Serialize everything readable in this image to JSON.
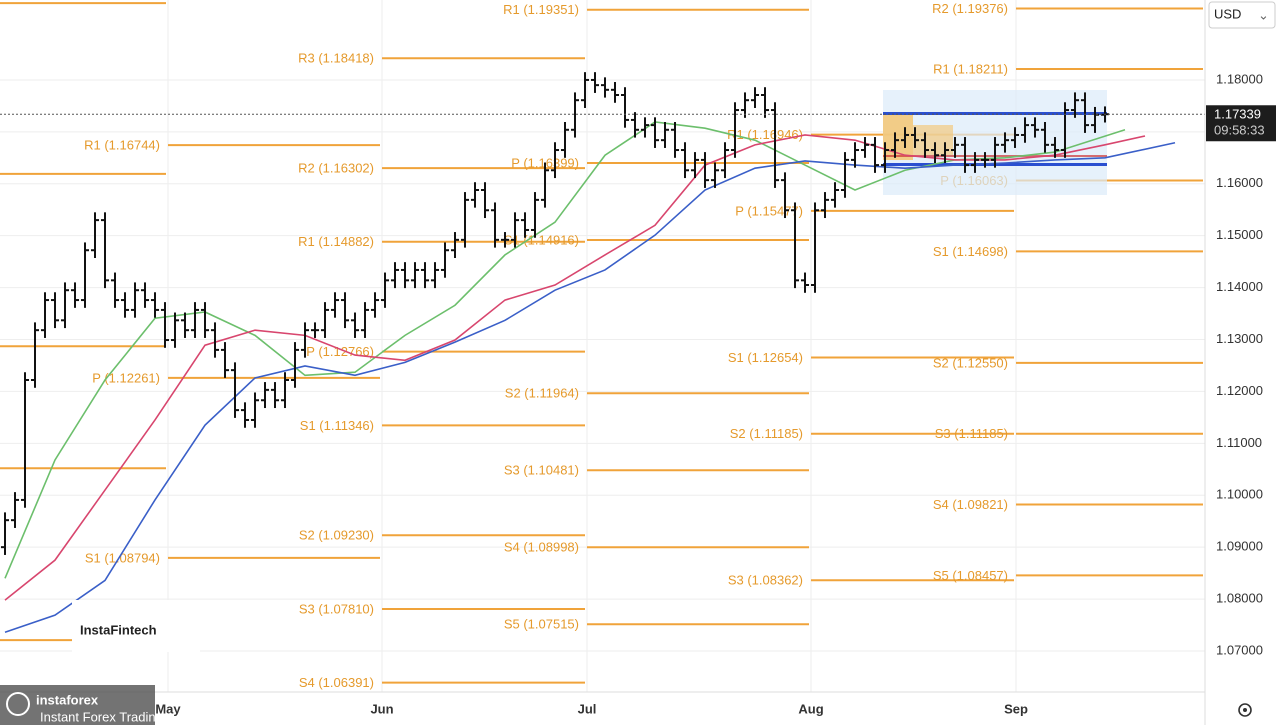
{
  "chart_data": {
    "type": "ohlc",
    "currency": "USD",
    "countdown": "09:58:33",
    "watermark": "InstaFintech",
    "brand": {
      "name": "instaforex",
      "tagline": "Instant Forex Trading"
    },
    "last_price": 1.17339,
    "categories": [
      "May",
      "Jun",
      "Jul",
      "Aug",
      "Sep"
    ],
    "ylim": [
      1.0621,
      1.1954
    ],
    "yticks": [
      {
        "value": 1.07,
        "label": "1.07000"
      },
      {
        "value": 1.08,
        "label": "1.08000"
      },
      {
        "value": 1.09,
        "label": "1.09000"
      },
      {
        "value": 1.1,
        "label": "1.10000"
      },
      {
        "value": 1.11,
        "label": "1.11000"
      },
      {
        "value": 1.12,
        "label": "1.12000"
      },
      {
        "value": 1.13,
        "label": "1.13000"
      },
      {
        "value": 1.14,
        "label": "1.14000"
      },
      {
        "value": 1.15,
        "label": "1.15000"
      },
      {
        "value": 1.16,
        "label": "1.16000"
      },
      {
        "value": 1.17,
        "label": "1.17000"
      },
      {
        "value": 1.18,
        "label": "1.18000"
      }
    ],
    "grid": true,
    "bar_color": "#111111",
    "open": [
      1.09,
      1.0952,
      1.0991,
      1.1222,
      1.1318,
      1.1376,
      1.1337,
      1.1395,
      1.1376,
      1.1472,
      1.153,
      1.1414,
      1.1376,
      1.1357,
      1.1395,
      1.1376,
      1.1357,
      1.1299,
      1.1337,
      1.1318,
      1.1357,
      1.1318,
      1.128,
      1.1241,
      1.1164,
      1.1145,
      1.1183,
      1.1203,
      1.1183,
      1.1222,
      1.128,
      1.1318,
      1.1318,
      1.1357,
      1.1376,
      1.1337,
      1.1318,
      1.1357,
      1.1376,
      1.1414,
      1.1434,
      1.1414,
      1.1434,
      1.1414,
      1.1434,
      1.1472,
      1.1492,
      1.1569,
      1.1588,
      1.1549,
      1.1492,
      1.1492,
      1.153,
      1.1511,
      1.1569,
      1.1626,
      1.1665,
      1.1704,
      1.1761,
      1.18,
      1.179,
      1.1781,
      1.1771,
      1.1723,
      1.1704,
      1.1713,
      1.1684,
      1.1704,
      1.1665,
      1.1626,
      1.1646,
      1.1607,
      1.1626,
      1.1665,
      1.1742,
      1.1761,
      1.1771,
      1.1742,
      1.1607,
      1.1549,
      1.1414,
      1.1405,
      1.1549,
      1.1569,
      1.1588,
      1.1646,
      1.1665,
      1.1675,
      1.1636,
      1.1665,
      1.1684,
      1.1694,
      1.1684,
      1.1665,
      1.1655,
      1.1665,
      1.1675,
      1.1636,
      1.1646,
      1.1646,
      1.1675,
      1.1684,
      1.1694,
      1.1713,
      1.1704,
      1.1675,
      1.1665,
      1.1742,
      1.1761,
      1.1713,
      1.1733
    ],
    "high": [
      1.0967,
      1.1006,
      1.1237,
      1.1333,
      1.1391,
      1.1391,
      1.141,
      1.141,
      1.1487,
      1.1545,
      1.1545,
      1.1429,
      1.1391,
      1.141,
      1.141,
      1.1391,
      1.1372,
      1.1352,
      1.1352,
      1.1372,
      1.1372,
      1.1333,
      1.1295,
      1.1256,
      1.1179,
      1.1198,
      1.1218,
      1.1218,
      1.1237,
      1.1295,
      1.1333,
      1.1333,
      1.1372,
      1.1391,
      1.1391,
      1.1352,
      1.1372,
      1.1391,
      1.1429,
      1.1449,
      1.1449,
      1.1449,
      1.1449,
      1.1449,
      1.1487,
      1.1507,
      1.1584,
      1.1603,
      1.1603,
      1.1564,
      1.1507,
      1.1545,
      1.1545,
      1.1584,
      1.1641,
      1.168,
      1.1719,
      1.1776,
      1.1815,
      1.1815,
      1.1805,
      1.1796,
      1.1786,
      1.1738,
      1.1728,
      1.1728,
      1.1719,
      1.1719,
      1.168,
      1.1661,
      1.1661,
      1.1641,
      1.168,
      1.1757,
      1.1776,
      1.1786,
      1.1786,
      1.1757,
      1.1622,
      1.1564,
      1.1429,
      1.1564,
      1.1584,
      1.1603,
      1.1661,
      1.168,
      1.169,
      1.169,
      1.168,
      1.1699,
      1.1709,
      1.1709,
      1.1699,
      1.168,
      1.168,
      1.169,
      1.169,
      1.1661,
      1.1661,
      1.169,
      1.1699,
      1.1709,
      1.1728,
      1.1728,
      1.1719,
      1.169,
      1.1757,
      1.1776,
      1.1776,
      1.1748,
      1.1749
    ],
    "low": [
      1.0885,
      1.0937,
      1.0976,
      1.1207,
      1.1303,
      1.1322,
      1.1322,
      1.1361,
      1.1361,
      1.1457,
      1.1399,
      1.1361,
      1.1342,
      1.1342,
      1.1361,
      1.1342,
      1.1284,
      1.1284,
      1.1303,
      1.1303,
      1.1303,
      1.1265,
      1.1226,
      1.1149,
      1.113,
      1.113,
      1.1168,
      1.1168,
      1.1168,
      1.1207,
      1.1265,
      1.1303,
      1.1303,
      1.1342,
      1.1322,
      1.1303,
      1.1303,
      1.1342,
      1.1361,
      1.1399,
      1.1399,
      1.1399,
      1.1399,
      1.1399,
      1.1419,
      1.1457,
      1.1477,
      1.1554,
      1.1534,
      1.1477,
      1.1477,
      1.1477,
      1.1496,
      1.1496,
      1.1554,
      1.1611,
      1.165,
      1.1689,
      1.1746,
      1.1775,
      1.1766,
      1.1756,
      1.1708,
      1.1689,
      1.1689,
      1.1669,
      1.1669,
      1.165,
      1.1611,
      1.1611,
      1.1592,
      1.1592,
      1.1611,
      1.165,
      1.1727,
      1.1746,
      1.1727,
      1.1592,
      1.1534,
      1.1399,
      1.139,
      1.139,
      1.1534,
      1.1554,
      1.1573,
      1.1631,
      1.165,
      1.1621,
      1.1621,
      1.165,
      1.1669,
      1.1669,
      1.165,
      1.164,
      1.164,
      1.165,
      1.1621,
      1.1621,
      1.1631,
      1.1631,
      1.166,
      1.1669,
      1.1679,
      1.1689,
      1.166,
      1.165,
      1.165,
      1.1727,
      1.1698,
      1.1698,
      1.1718
    ],
    "close": [
      1.0952,
      1.0991,
      1.1222,
      1.1318,
      1.1376,
      1.1337,
      1.1395,
      1.1376,
      1.1472,
      1.153,
      1.1414,
      1.1376,
      1.1357,
      1.1395,
      1.1376,
      1.1357,
      1.1299,
      1.1337,
      1.1318,
      1.1357,
      1.1318,
      1.128,
      1.1241,
      1.1164,
      1.1145,
      1.1183,
      1.1203,
      1.1183,
      1.1222,
      1.128,
      1.1318,
      1.1318,
      1.1357,
      1.1376,
      1.1337,
      1.1318,
      1.1357,
      1.1376,
      1.1414,
      1.1434,
      1.1414,
      1.1434,
      1.1414,
      1.1434,
      1.1472,
      1.1492,
      1.1569,
      1.1588,
      1.1549,
      1.1492,
      1.1492,
      1.153,
      1.1511,
      1.1569,
      1.1626,
      1.1665,
      1.1704,
      1.1761,
      1.18,
      1.179,
      1.1781,
      1.1771,
      1.1723,
      1.1704,
      1.1713,
      1.1684,
      1.1704,
      1.1665,
      1.1626,
      1.1646,
      1.1607,
      1.1626,
      1.1665,
      1.1742,
      1.1761,
      1.1771,
      1.1742,
      1.1607,
      1.1549,
      1.1414,
      1.1405,
      1.1549,
      1.1569,
      1.1588,
      1.1646,
      1.1665,
      1.1675,
      1.1636,
      1.1665,
      1.1684,
      1.1694,
      1.1684,
      1.1665,
      1.1655,
      1.1665,
      1.1675,
      1.1636,
      1.1646,
      1.1646,
      1.1675,
      1.1684,
      1.1694,
      1.1713,
      1.1704,
      1.1675,
      1.1665,
      1.1742,
      1.1761,
      1.1713,
      1.1733,
      1.1734
    ],
    "moving_averages": [
      {
        "color": "#6cbf6c",
        "x": [
          0,
          5,
          10,
          15,
          20,
          25,
          30,
          35,
          40,
          45,
          50,
          55,
          60,
          65,
          70,
          75,
          80,
          85,
          90,
          95,
          100,
          105,
          112
        ],
        "values": [
          1.084,
          1.1068,
          1.1222,
          1.1341,
          1.1353,
          1.1308,
          1.1231,
          1.1237,
          1.1308,
          1.1366,
          1.1463,
          1.1526,
          1.1655,
          1.1719,
          1.1707,
          1.1684,
          1.1636,
          1.1588,
          1.1626,
          1.1646,
          1.165,
          1.1661,
          1.1704
        ]
      },
      {
        "color": "#d8466e",
        "x": [
          0,
          5,
          10,
          15,
          20,
          25,
          30,
          35,
          40,
          45,
          50,
          55,
          60,
          65,
          70,
          75,
          80,
          85,
          90,
          95,
          100,
          105,
          110,
          114
        ],
        "values": [
          1.0798,
          1.0875,
          1.101,
          1.1145,
          1.1289,
          1.1318,
          1.1308,
          1.127,
          1.126,
          1.1299,
          1.1376,
          1.1405,
          1.1463,
          1.152,
          1.1636,
          1.1675,
          1.1694,
          1.1684,
          1.1655,
          1.1646,
          1.1646,
          1.1655,
          1.1675,
          1.1692
        ]
      },
      {
        "color": "#3a5fc8",
        "x": [
          0,
          5,
          10,
          15,
          20,
          25,
          30,
          35,
          40,
          45,
          50,
          55,
          60,
          65,
          70,
          75,
          80,
          85,
          90,
          95,
          100,
          105,
          110,
          117
        ],
        "values": [
          1.0736,
          1.0769,
          1.0836,
          1.0991,
          1.1135,
          1.1226,
          1.1249,
          1.1231,
          1.1256,
          1.1295,
          1.1337,
          1.1395,
          1.1434,
          1.1501,
          1.1588,
          1.163,
          1.1644,
          1.1636,
          1.163,
          1.1636,
          1.164,
          1.1646,
          1.165,
          1.1679
        ]
      }
    ],
    "pivot_color": "#f0a33a",
    "pivots": [
      {
        "levels": [
          {
            "value": 1.1948
          },
          {
            "value": 1.1619
          },
          {
            "value": 1.1287
          },
          {
            "value": 1.1052
          },
          {
            "value": 1.0721
          }
        ]
      },
      {
        "levels": [
          {
            "value": 1.16744,
            "label": "R1 (1.16744)"
          },
          {
            "value": 1.12261,
            "label": "P (1.12261)"
          },
          {
            "value": 1.08794,
            "label": "S1 (1.08794)"
          }
        ]
      },
      {
        "levels": [
          {
            "value": 1.18418,
            "label": "R3 (1.18418)"
          },
          {
            "value": 1.16302,
            "label": "R2 (1.16302)"
          },
          {
            "value": 1.14882,
            "label": "R1 (1.14882)"
          },
          {
            "value": 1.12766,
            "label": "P (1.12766)"
          },
          {
            "value": 1.11346,
            "label": "S1 (1.11346)"
          },
          {
            "value": 1.0923,
            "label": "S2 (1.09230)"
          },
          {
            "value": 1.0781,
            "label": "S3 (1.07810)"
          },
          {
            "value": 1.06391,
            "label": "S4 (1.06391)"
          }
        ]
      },
      {
        "levels": [
          {
            "value": 1.19351,
            "label": "R1 (1.19351)"
          },
          {
            "value": 1.16399,
            "label": "P (1.16399)"
          },
          {
            "value": 1.14916,
            "label": "S1 (1.14916)"
          },
          {
            "value": 1.11964,
            "label": "S2 (1.11964)"
          },
          {
            "value": 1.10481,
            "label": "S3 (1.10481)"
          },
          {
            "value": 1.08998,
            "label": "S4 (1.08998)"
          },
          {
            "value": 1.07515,
            "label": "S5 (1.07515)"
          }
        ]
      },
      {
        "levels": [
          {
            "value": 1.16946,
            "label": "R1 (1.16946)"
          },
          {
            "value": 1.15477,
            "label": "P (1.15477)"
          },
          {
            "value": 1.12654,
            "label": "S1 (1.12654)"
          },
          {
            "value": 1.11185,
            "label": "S2 (1.11185)"
          },
          {
            "value": 1.08362,
            "label": "S3 (1.08362)"
          }
        ]
      },
      {
        "levels": [
          {
            "value": 1.19376,
            "label": "R2 (1.19376)"
          },
          {
            "value": 1.18211,
            "label": "R1 (1.18211)"
          },
          {
            "value": 1.16063,
            "label": "P (1.16063)"
          },
          {
            "value": 1.14698,
            "label": "S1 (1.14698)"
          },
          {
            "value": 1.1255,
            "label": "S2 (1.12550)"
          },
          {
            "value": 1.11185,
            "label": "S3 (1.11185)"
          },
          {
            "value": 1.09821,
            "label": "S4 (1.09821)"
          },
          {
            "value": 1.08457,
            "label": "S5 (1.08457)"
          }
        ]
      }
    ]
  }
}
